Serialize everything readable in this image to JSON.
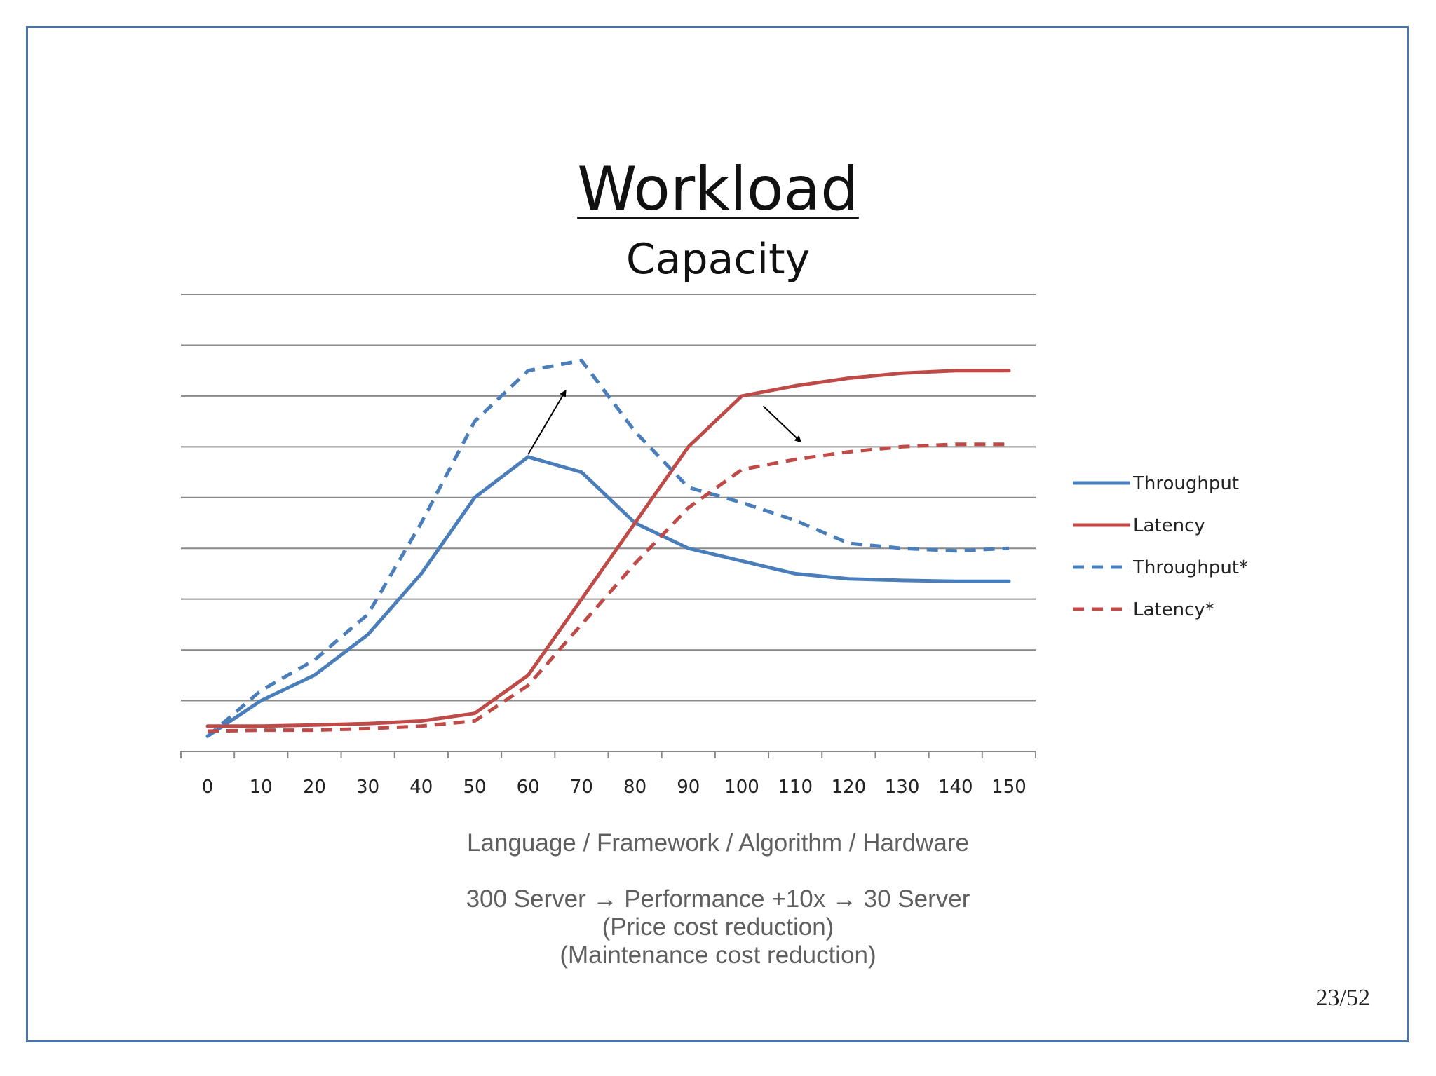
{
  "slide": {
    "title": "Workload",
    "subtitle": "Capacity",
    "captions": [
      "Language / Framework / Algorithm / Hardware",
      "300 Server → Performance +10x → 30 Server",
      "(Price cost reduction)",
      "(Maintenance cost reduction)"
    ],
    "page_number": "23/52"
  },
  "chart_data": {
    "type": "line",
    "title": "",
    "xlabel": "",
    "ylabel": "",
    "x": [
      0,
      10,
      20,
      30,
      40,
      50,
      60,
      70,
      80,
      90,
      100,
      110,
      120,
      130,
      140,
      150
    ],
    "ylim": [
      0,
      9
    ],
    "grid": true,
    "legend": "right",
    "series": [
      {
        "name": "Throughput",
        "color": "#4a7ebb",
        "dash": false,
        "values": [
          0.3,
          1.0,
          1.5,
          2.3,
          3.5,
          5.0,
          5.8,
          5.5,
          4.5,
          4.0,
          3.75,
          3.5,
          3.4,
          3.37,
          3.35,
          3.35
        ]
      },
      {
        "name": "Latency",
        "color": "#be4b48",
        "dash": false,
        "values": [
          0.5,
          0.5,
          0.52,
          0.55,
          0.6,
          0.75,
          1.5,
          3.0,
          4.5,
          6.0,
          7.0,
          7.2,
          7.35,
          7.45,
          7.5,
          7.5
        ]
      },
      {
        "name": "Throughput*",
        "color": "#4a7ebb",
        "dash": true,
        "values": [
          0.3,
          1.2,
          1.8,
          2.7,
          4.5,
          6.5,
          7.5,
          7.7,
          6.3,
          5.2,
          4.9,
          4.55,
          4.1,
          4.0,
          3.95,
          4.0
        ]
      },
      {
        "name": "Latency*",
        "color": "#be4b48",
        "dash": true,
        "values": [
          0.4,
          0.42,
          0.42,
          0.45,
          0.5,
          0.6,
          1.3,
          2.5,
          3.7,
          4.8,
          5.55,
          5.75,
          5.9,
          6.0,
          6.05,
          6.05
        ]
      }
    ],
    "annotations": [
      {
        "type": "arrow",
        "direction": "up",
        "from": {
          "x": 60,
          "y": 5.85
        },
        "to": {
          "x": 67,
          "y": 7.1
        }
      },
      {
        "type": "arrow",
        "direction": "down",
        "from": {
          "x": 104,
          "y": 6.8
        },
        "to": {
          "x": 111,
          "y": 6.1
        }
      }
    ]
  }
}
